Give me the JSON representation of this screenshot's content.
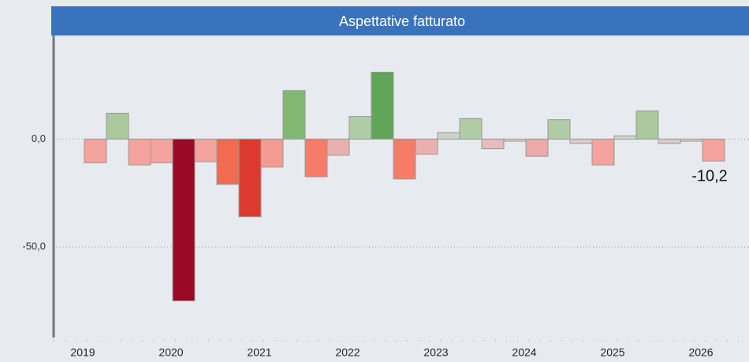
{
  "chart_data": {
    "type": "bar",
    "title": "Aspettative  fatturato",
    "categories": [
      "2019",
      null,
      null,
      null,
      "2020",
      null,
      null,
      null,
      "2021",
      null,
      null,
      null,
      "2022",
      null,
      null,
      null,
      "2023",
      null,
      null,
      null,
      "2024",
      null,
      null,
      null,
      "2025",
      null,
      null,
      null,
      "2026"
    ],
    "values": [
      -11,
      12,
      -12,
      -11,
      -75,
      -10.5,
      -21,
      -36,
      -13,
      22.5,
      -17.5,
      -7.5,
      10.5,
      31,
      -18.5,
      -7,
      3,
      9.5,
      -4.5,
      -1,
      -8,
      9,
      -2,
      -12,
      1.5,
      13,
      -2,
      -1,
      -10.2
    ],
    "value_labels": [
      null,
      null,
      null,
      null,
      null,
      null,
      null,
      null,
      null,
      null,
      null,
      null,
      null,
      null,
      null,
      null,
      null,
      null,
      null,
      null,
      null,
      null,
      null,
      null,
      null,
      null,
      null,
      null,
      "-10,2"
    ],
    "colors": [
      "#f4a29c",
      "#a9c89c",
      "#f4a29c",
      "#f4a29c",
      "#9b0a25",
      "#f4a29c",
      "#f26a50",
      "#dd3a2f",
      "#f59a90",
      "#82b972",
      "#f77c68",
      "#e8b0ae",
      "#b0cca6",
      "#60a558",
      "#f77c68",
      "#e8b0ae",
      "#c8d4c4",
      "#b0cca6",
      "#e6bcbc",
      "#d8cccc",
      "#ecaaa8",
      "#b0cca6",
      "#dccaca",
      "#f4a29c",
      "#cdd6ca",
      "#a9c89c",
      "#dccaca",
      "#d8cccc",
      "#f4a29c"
    ],
    "ylim": [
      -92,
      48
    ],
    "yticks": [
      {
        "value": 0,
        "label": "0,0"
      },
      {
        "value": -50,
        "label": "-50,0"
      }
    ]
  }
}
